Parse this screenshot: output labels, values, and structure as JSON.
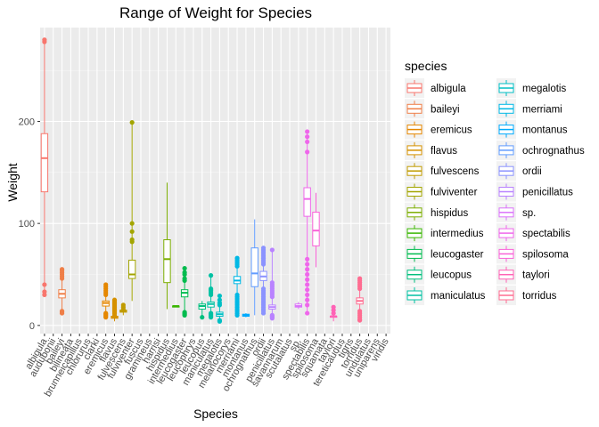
{
  "chart_data": {
    "type": "box",
    "title": "Range of Weight for Species",
    "xlabel": "Species",
    "ylabel": "Weight",
    "ylim": [
      -8,
      292
    ],
    "yticks": [
      0,
      100,
      200
    ],
    "categories": [
      "albigula",
      "audubonii",
      "baileyi",
      "bilineata",
      "brunneicapillus",
      "chlorurus",
      "clarki",
      "eremicus",
      "flavus",
      "fulvescens",
      "fulviventer",
      "fuscus",
      "gramineus",
      "harrisi",
      "hispidus",
      "intermedius",
      "leucogaster",
      "leucophrys",
      "leucopus",
      "maniculatus",
      "megalotis",
      "melanocorys",
      "merriami",
      "montanus",
      "ochrognathus",
      "ordii",
      "penicillatus",
      "savannarum",
      "scutalatus",
      "sp.",
      "spectabilis",
      "spilosoma",
      "squamata",
      "taylori",
      "tereticaudus",
      "tigris",
      "torridus",
      "undulatus",
      "uniparens",
      "viridis"
    ],
    "legend": {
      "title": "species",
      "position": "right",
      "entries": [
        "albigula",
        "baileyi",
        "eremicus",
        "flavus",
        "fulvescens",
        "fulviventer",
        "hispidus",
        "intermedius",
        "leucogaster",
        "leucopus",
        "maniculatus",
        "megalotis",
        "merriami",
        "montanus",
        "ochrognathus",
        "ordii",
        "penicillatus",
        "sp.",
        "spectabilis",
        "spilosoma",
        "taylori",
        "torridus"
      ]
    },
    "series": [
      {
        "name": "albigula",
        "color": "#F8766D",
        "category": "albigula",
        "q1": 131,
        "median": 164,
        "q3": 188,
        "lo": 30,
        "hi": 280,
        "outliers": [
          30,
          33,
          40,
          278,
          280
        ]
      },
      {
        "name": "baileyi",
        "color": "#EF7F48",
        "category": "baileyi",
        "q1": 27,
        "median": 31,
        "q3": 35,
        "lo": 12,
        "hi": 55,
        "outliers": [
          12,
          13,
          14,
          46,
          48,
          50,
          52,
          54,
          55
        ]
      },
      {
        "name": "eremicus",
        "color": "#E58700",
        "category": "eremicus",
        "q1": 19,
        "median": 22,
        "q3": 24,
        "lo": 8,
        "hi": 40,
        "outliers": [
          8,
          9,
          10,
          11,
          12,
          30,
          32,
          34,
          36,
          38,
          40
        ]
      },
      {
        "name": "flavus",
        "color": "#D69100",
        "category": "flavus",
        "q1": 7,
        "median": 8,
        "q3": 9,
        "lo": 4,
        "hi": 25,
        "outliers": [
          10,
          12,
          13,
          14,
          15,
          16,
          17,
          18,
          19,
          20,
          21,
          22,
          23,
          24,
          25
        ]
      },
      {
        "name": "fulvescens",
        "color": "#C09B00",
        "category": "fulvescens",
        "q1": 13,
        "median": 14,
        "q3": 15,
        "lo": 10,
        "hi": 20,
        "outliers": [
          16,
          18,
          20
        ]
      },
      {
        "name": "fulviventer",
        "color": "#A3A500",
        "category": "fulviventer",
        "q1": 46,
        "median": 50,
        "q3": 64,
        "lo": 24,
        "hi": 199,
        "outliers": [
          82,
          84,
          92,
          100,
          199
        ]
      },
      {
        "name": "hispidus",
        "color": "#7CAE00",
        "category": "hispidus",
        "q1": 42,
        "median": 65,
        "q3": 84,
        "lo": 16,
        "hi": 140,
        "outliers": []
      },
      {
        "name": "intermedius",
        "color": "#39B600",
        "category": "intermedius",
        "q1": 18,
        "median": 19,
        "q3": 19,
        "lo": 18,
        "hi": 19,
        "outliers": []
      },
      {
        "name": "leucogaster",
        "color": "#00BB4E",
        "category": "leucogaster",
        "q1": 28,
        "median": 32,
        "q3": 35,
        "lo": 10,
        "hi": 56,
        "outliers": [
          10,
          11,
          12,
          13,
          44,
          46,
          50,
          52,
          56
        ]
      },
      {
        "name": "leucopus",
        "color": "#00BF7D",
        "category": "leucopus",
        "q1": 16,
        "median": 19,
        "q3": 21,
        "lo": 8,
        "hi": 24,
        "outliers": [
          8
        ]
      },
      {
        "name": "maniculatus",
        "color": "#00C1A3",
        "category": "maniculatus",
        "q1": 18,
        "median": 21,
        "q3": 23,
        "lo": 8,
        "hi": 49,
        "outliers": [
          8,
          9,
          10,
          11,
          12,
          30,
          32,
          34,
          35,
          36,
          49
        ]
      },
      {
        "name": "megalotis",
        "color": "#00BFC4",
        "category": "megalotis",
        "q1": 9,
        "median": 11,
        "q3": 13,
        "lo": 4,
        "hi": 29,
        "outliers": [
          4,
          5,
          20,
          22,
          25,
          29
        ]
      },
      {
        "name": "merriami",
        "color": "#00B8E5",
        "category": "merriami",
        "q1": 41,
        "median": 44,
        "q3": 48,
        "lo": 10,
        "hi": 66,
        "outliers": [
          10,
          12,
          14,
          16,
          18,
          20,
          22,
          24,
          26,
          28,
          30,
          58,
          60,
          62,
          64,
          66
        ]
      },
      {
        "name": "montanus",
        "color": "#00ABFD",
        "category": "montanus",
        "q1": 9,
        "median": 10,
        "q3": 11,
        "lo": 8,
        "hi": 12,
        "outliers": []
      },
      {
        "name": "ochrognathus",
        "color": "#619CFF",
        "category": "ochrognathus",
        "q1": 38,
        "median": 51,
        "q3": 76,
        "lo": 10,
        "hi": 104,
        "outliers": []
      },
      {
        "name": "ordii",
        "color": "#8B93FF",
        "category": "ordii",
        "q1": 44,
        "median": 48,
        "q3": 53,
        "lo": 12,
        "hi": 76,
        "outliers": [
          12,
          14,
          16,
          18,
          20,
          22,
          24,
          26,
          28,
          30,
          32,
          34,
          36,
          60,
          62,
          64,
          66,
          68,
          70,
          72,
          74,
          76
        ]
      },
      {
        "name": "penicillatus",
        "color": "#B983FF",
        "category": "penicillatus",
        "q1": 16,
        "median": 18,
        "q3": 20,
        "lo": 7,
        "hi": 74,
        "outliers": [
          7,
          8,
          9,
          10,
          28,
          30,
          32,
          34,
          36,
          38,
          40,
          42,
          74
        ]
      },
      {
        "name": "sp.",
        "color": "#DB72FB",
        "category": "sp.",
        "q1": 18,
        "median": 19,
        "q3": 21,
        "lo": 16,
        "hi": 23,
        "outliers": []
      },
      {
        "name": "spectabilis",
        "color": "#EF67EB",
        "category": "spectabilis",
        "q1": 107,
        "median": 124,
        "q3": 135,
        "lo": 12,
        "hi": 190,
        "outliers": [
          12,
          20,
          25,
          30,
          35,
          40,
          45,
          50,
          55,
          60,
          65,
          170,
          180,
          185,
          190
        ]
      },
      {
        "name": "spilosoma",
        "color": "#FA62D8",
        "category": "spilosoma",
        "q1": 78,
        "median": 93,
        "q3": 111,
        "lo": 57,
        "hi": 130,
        "outliers": []
      },
      {
        "name": "taylori",
        "color": "#FF63B6",
        "category": "taylori",
        "q1": 8,
        "median": 9,
        "q3": 9,
        "lo": 4,
        "hi": 18,
        "outliers": [
          12,
          15,
          18
        ]
      },
      {
        "name": "torridus",
        "color": "#FF6C91",
        "category": "torridus",
        "q1": 21,
        "median": 24,
        "q3": 27,
        "lo": 5,
        "hi": 46,
        "outliers": [
          5,
          6,
          8,
          10,
          12,
          14,
          36,
          38,
          40,
          42,
          44,
          46
        ]
      }
    ]
  }
}
